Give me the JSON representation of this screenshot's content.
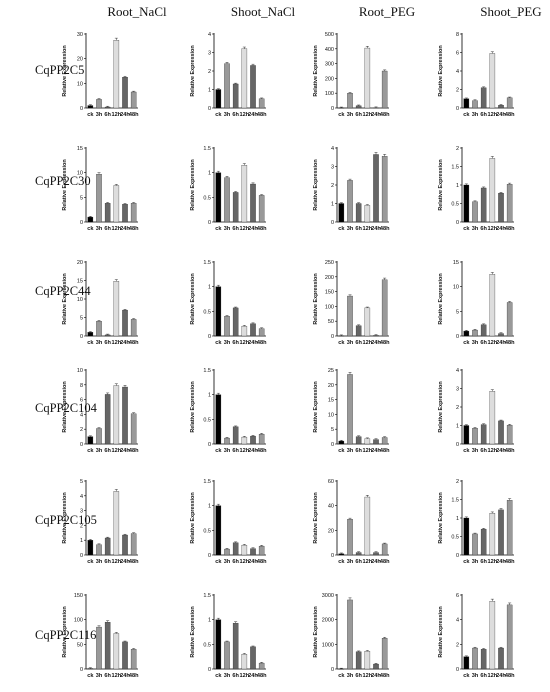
{
  "column_titles": [
    "Root_NaCl",
    "Shoot_NaCl",
    "Root_PEG",
    "Shoot_PEG"
  ],
  "row_labels": [
    "CqPP2C5",
    "CqPP2C30",
    "CqPP2C44",
    "CqPP2C104",
    "CqPP2C105",
    "CqPP2C116"
  ],
  "bar_colors": [
    "#000000",
    "#999999",
    "#666666",
    "#dddddd",
    "#666666",
    "#999999"
  ],
  "chart_data": [
    {
      "type": "bar",
      "title": "",
      "gene": "CqPP2C5",
      "condition": "Root_NaCl",
      "categories": [
        "ck",
        "3h",
        "6h",
        "12h",
        "24h",
        "48h"
      ],
      "values": [
        1,
        3.5,
        0.4,
        27.5,
        12.5,
        6.5
      ],
      "ylabel": "Relative Expression",
      "ylim": [
        0,
        30
      ],
      "yticks": [
        0,
        10,
        20,
        30
      ]
    },
    {
      "type": "bar",
      "title": "",
      "gene": "CqPP2C5",
      "condition": "Shoot_NaCl",
      "categories": [
        "ck",
        "3h",
        "6h",
        "12h",
        "24h",
        "48h"
      ],
      "values": [
        1,
        2.4,
        1.3,
        3.2,
        2.3,
        0.5
      ],
      "ylabel": "Relative Expression",
      "ylim": [
        0,
        4
      ],
      "yticks": [
        0,
        1,
        2,
        3,
        4
      ]
    },
    {
      "type": "bar",
      "title": "",
      "gene": "CqPP2C5",
      "condition": "Root_PEG",
      "categories": [
        "ck",
        "3h",
        "6h",
        "12h",
        "24h",
        "48h"
      ],
      "values": [
        1,
        100,
        15,
        405,
        2,
        250
      ],
      "ylabel": "Relative Expression",
      "ylim": [
        0,
        500
      ],
      "yticks": [
        0,
        100,
        200,
        300,
        400,
        500
      ]
    },
    {
      "type": "bar",
      "title": "",
      "gene": "CqPP2C5",
      "condition": "Shoot_PEG",
      "categories": [
        "ck",
        "3h",
        "6h",
        "12h",
        "24h",
        "48h"
      ],
      "values": [
        1,
        0.8,
        2.2,
        5.9,
        0.3,
        1.1
      ],
      "ylabel": "Relative Expression",
      "ylim": [
        0,
        8
      ],
      "yticks": [
        0,
        2,
        4,
        6,
        8
      ]
    },
    {
      "type": "bar",
      "title": "",
      "gene": "CqPP2C30",
      "condition": "Root_NaCl",
      "categories": [
        "ck",
        "3h",
        "6h",
        "12h",
        "24h",
        "48h"
      ],
      "values": [
        1,
        9.7,
        3.8,
        7.4,
        3.6,
        3.8
      ],
      "ylabel": "Relative Expression",
      "ylim": [
        0,
        15
      ],
      "yticks": [
        0,
        5,
        10,
        15
      ]
    },
    {
      "type": "bar",
      "title": "",
      "gene": "CqPP2C30",
      "condition": "Shoot_NaCl",
      "categories": [
        "ck",
        "3h",
        "6h",
        "12h",
        "24h",
        "48h"
      ],
      "values": [
        1,
        0.9,
        0.6,
        1.15,
        0.77,
        0.54
      ],
      "ylabel": "Relative Expression",
      "ylim": [
        0,
        1.5
      ],
      "yticks": [
        0,
        0.5,
        1.0,
        1.5
      ]
    },
    {
      "type": "bar",
      "title": "",
      "gene": "CqPP2C30",
      "condition": "Root_PEG",
      "categories": [
        "ck",
        "3h",
        "6h",
        "12h",
        "24h",
        "48h"
      ],
      "values": [
        1,
        2.25,
        1,
        0.9,
        3.65,
        3.55
      ],
      "ylabel": "Relative Expression",
      "ylim": [
        0,
        4
      ],
      "yticks": [
        0,
        1,
        2,
        3,
        4
      ]
    },
    {
      "type": "bar",
      "title": "",
      "gene": "CqPP2C30",
      "condition": "Shoot_PEG",
      "categories": [
        "ck",
        "3h",
        "6h",
        "12h",
        "24h",
        "48h"
      ],
      "values": [
        1,
        0.55,
        0.92,
        1.72,
        0.78,
        1.02
      ],
      "ylabel": "Relative Expression",
      "ylim": [
        0,
        2.0
      ],
      "yticks": [
        0,
        0.5,
        1.0,
        1.5,
        2.0
      ]
    },
    {
      "type": "bar",
      "title": "",
      "gene": "CqPP2C44",
      "condition": "Root_NaCl",
      "categories": [
        "ck",
        "3h",
        "6h",
        "12h",
        "24h",
        "48h"
      ],
      "values": [
        1,
        4,
        0.3,
        14.8,
        7,
        4.5
      ],
      "ylabel": "Relative Expression",
      "ylim": [
        0,
        20
      ],
      "yticks": [
        0,
        5,
        10,
        15,
        20
      ]
    },
    {
      "type": "bar",
      "title": "",
      "gene": "CqPP2C44",
      "condition": "Shoot_NaCl",
      "categories": [
        "ck",
        "3h",
        "6h",
        "12h",
        "24h",
        "48h"
      ],
      "values": [
        1,
        0.4,
        0.57,
        0.2,
        0.25,
        0.15
      ],
      "ylabel": "Relative Expression",
      "ylim": [
        0,
        1.5
      ],
      "yticks": [
        0,
        0.5,
        1.0,
        1.5
      ]
    },
    {
      "type": "bar",
      "title": "",
      "gene": "CqPP2C44",
      "condition": "Root_PEG",
      "categories": [
        "ck",
        "3h",
        "6h",
        "12h",
        "24h",
        "48h"
      ],
      "values": [
        1,
        135,
        35,
        95,
        2,
        190
      ],
      "ylabel": "Relative Expression",
      "ylim": [
        0,
        250
      ],
      "yticks": [
        0,
        50,
        100,
        150,
        200,
        250
      ]
    },
    {
      "type": "bar",
      "title": "",
      "gene": "CqPP2C44",
      "condition": "Shoot_PEG",
      "categories": [
        "ck",
        "3h",
        "6h",
        "12h",
        "24h",
        "48h"
      ],
      "values": [
        1,
        1.2,
        2.3,
        12.5,
        0.5,
        6.8
      ],
      "ylabel": "Relative Expression",
      "ylim": [
        0,
        15
      ],
      "yticks": [
        0,
        5,
        10,
        15
      ]
    },
    {
      "type": "bar",
      "title": "",
      "gene": "CqPP2C104",
      "condition": "Root_NaCl",
      "categories": [
        "ck",
        "3h",
        "6h",
        "12h",
        "24h",
        "48h"
      ],
      "values": [
        1,
        2.1,
        6.7,
        7.9,
        7.7,
        4.1
      ],
      "ylabel": "Relative Expression",
      "ylim": [
        0,
        10
      ],
      "yticks": [
        0,
        2,
        4,
        6,
        8,
        10
      ]
    },
    {
      "type": "bar",
      "title": "",
      "gene": "CqPP2C104",
      "condition": "Shoot_NaCl",
      "categories": [
        "ck",
        "3h",
        "6h",
        "12h",
        "24h",
        "48h"
      ],
      "values": [
        1,
        0.12,
        0.35,
        0.14,
        0.16,
        0.2
      ],
      "ylabel": "Relative Expression",
      "ylim": [
        0,
        1.5
      ],
      "yticks": [
        0,
        0.5,
        1.0,
        1.5
      ]
    },
    {
      "type": "bar",
      "title": "",
      "gene": "CqPP2C104",
      "condition": "Root_PEG",
      "categories": [
        "ck",
        "3h",
        "6h",
        "12h",
        "24h",
        "48h"
      ],
      "values": [
        1,
        23.5,
        2.5,
        1.8,
        1.5,
        2.2
      ],
      "ylabel": "Relative Expression",
      "ylim": [
        0,
        25
      ],
      "yticks": [
        0,
        5,
        10,
        15,
        20,
        25
      ]
    },
    {
      "type": "bar",
      "title": "",
      "gene": "CqPP2C104",
      "condition": "Shoot_PEG",
      "categories": [
        "ck",
        "3h",
        "6h",
        "12h",
        "24h",
        "48h"
      ],
      "values": [
        1,
        0.85,
        1.05,
        2.85,
        1.25,
        1.02
      ],
      "ylabel": "Relative Expression",
      "ylim": [
        0,
        4
      ],
      "yticks": [
        0,
        1,
        2,
        3,
        4
      ]
    },
    {
      "type": "bar",
      "title": "",
      "gene": "CqPP2C105",
      "condition": "Root_NaCl",
      "categories": [
        "ck",
        "3h",
        "6h",
        "12h",
        "24h",
        "48h"
      ],
      "values": [
        1,
        0.7,
        1.15,
        4.3,
        1.35,
        1.45
      ],
      "ylabel": "Relative Expression",
      "ylim": [
        0,
        5
      ],
      "yticks": [
        0,
        1,
        2,
        3,
        4,
        5
      ]
    },
    {
      "type": "bar",
      "title": "",
      "gene": "CqPP2C105",
      "condition": "Shoot_NaCl",
      "categories": [
        "ck",
        "3h",
        "6h",
        "12h",
        "24h",
        "48h"
      ],
      "values": [
        1,
        0.12,
        0.25,
        0.2,
        0.13,
        0.18
      ],
      "ylabel": "Relative Expression",
      "ylim": [
        0,
        1.5
      ],
      "yticks": [
        0,
        0.5,
        1.0,
        1.5
      ]
    },
    {
      "type": "bar",
      "title": "",
      "gene": "CqPP2C105",
      "condition": "Root_PEG",
      "categories": [
        "ck",
        "3h",
        "6h",
        "12h",
        "24h",
        "48h"
      ],
      "values": [
        1,
        29,
        2,
        47,
        2,
        9
      ],
      "ylabel": "Relative Expression",
      "ylim": [
        0,
        60
      ],
      "yticks": [
        0,
        20,
        40,
        60
      ]
    },
    {
      "type": "bar",
      "title": "",
      "gene": "CqPP2C105",
      "condition": "Shoot_PEG",
      "categories": [
        "ck",
        "3h",
        "6h",
        "12h",
        "24h",
        "48h"
      ],
      "values": [
        1,
        0.57,
        0.7,
        1.13,
        1.22,
        1.48
      ],
      "ylabel": "Relative Expression",
      "ylim": [
        0,
        2.0
      ],
      "yticks": [
        0,
        0.5,
        1.0,
        1.5,
        2.0
      ]
    },
    {
      "type": "bar",
      "title": "",
      "gene": "CqPP2C116",
      "condition": "Root_NaCl",
      "categories": [
        "ck",
        "3h",
        "6h",
        "12h",
        "24h",
        "48h"
      ],
      "values": [
        1,
        85,
        95,
        72,
        55,
        40
      ],
      "ylabel": "Relative Expression",
      "ylim": [
        0,
        150
      ],
      "yticks": [
        0,
        50,
        100,
        150
      ]
    },
    {
      "type": "bar",
      "title": "",
      "gene": "CqPP2C116",
      "condition": "Shoot_NaCl",
      "categories": [
        "ck",
        "3h",
        "6h",
        "12h",
        "24h",
        "48h"
      ],
      "values": [
        1,
        0.55,
        0.93,
        0.3,
        0.45,
        0.12
      ],
      "ylabel": "Relative Expression",
      "ylim": [
        0,
        1.5
      ],
      "yticks": [
        0,
        0.5,
        1.0,
        1.5
      ]
    },
    {
      "type": "bar",
      "title": "",
      "gene": "CqPP2C116",
      "condition": "Root_PEG",
      "categories": [
        "ck",
        "3h",
        "6h",
        "12h",
        "24h",
        "48h"
      ],
      "values": [
        1,
        2800,
        700,
        720,
        200,
        1250
      ],
      "ylabel": "Relative Expression",
      "ylim": [
        0,
        3000
      ],
      "yticks": [
        0,
        1000,
        2000,
        3000
      ]
    },
    {
      "type": "bar",
      "title": "",
      "gene": "CqPP2C116",
      "condition": "Shoot_PEG",
      "categories": [
        "ck",
        "3h",
        "6h",
        "12h",
        "24h",
        "48h"
      ],
      "values": [
        1,
        1.7,
        1.6,
        5.5,
        1.7,
        5.2
      ],
      "ylabel": "Relative Expression",
      "ylim": [
        0,
        6
      ],
      "yticks": [
        0,
        2,
        4,
        6
      ]
    }
  ]
}
